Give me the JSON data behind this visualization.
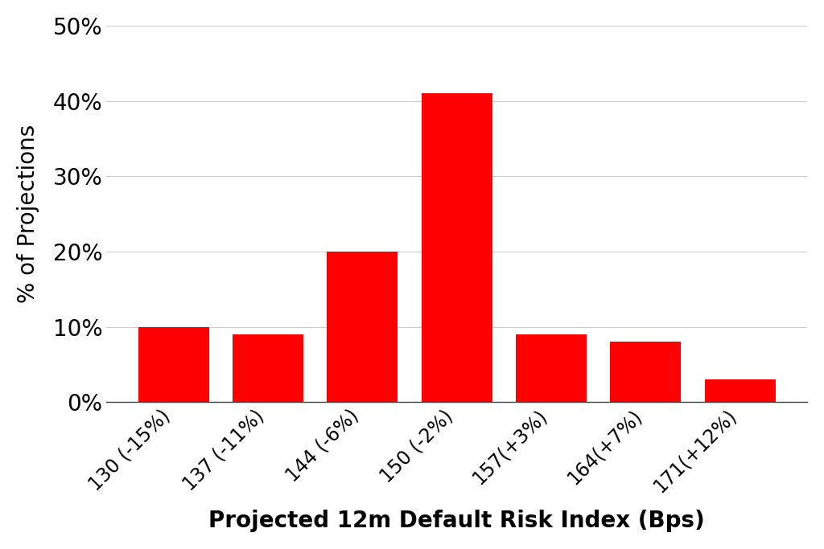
{
  "categories": [
    "130 (-15%)",
    "137 (-11%)",
    "144 (-6%)",
    "150 (-2%)",
    "157(+3%)",
    "164(+7%)",
    "171(+12%)"
  ],
  "values": [
    10,
    9,
    20,
    41,
    9,
    8,
    3
  ],
  "bar_color": "#FF0000",
  "xlabel": "Projected 12m Default Risk Index (Bps)",
  "ylabel": "% of Projections",
  "ylim": [
    0,
    50
  ],
  "yticks": [
    0,
    10,
    20,
    30,
    40,
    50
  ],
  "background_color": "#FFFFFF",
  "xlabel_fontsize": 20,
  "ylabel_fontsize": 20,
  "ytick_fontsize": 20,
  "xtick_fontsize": 17,
  "bar_width": 0.75,
  "grid_color": "#CCCCCC"
}
